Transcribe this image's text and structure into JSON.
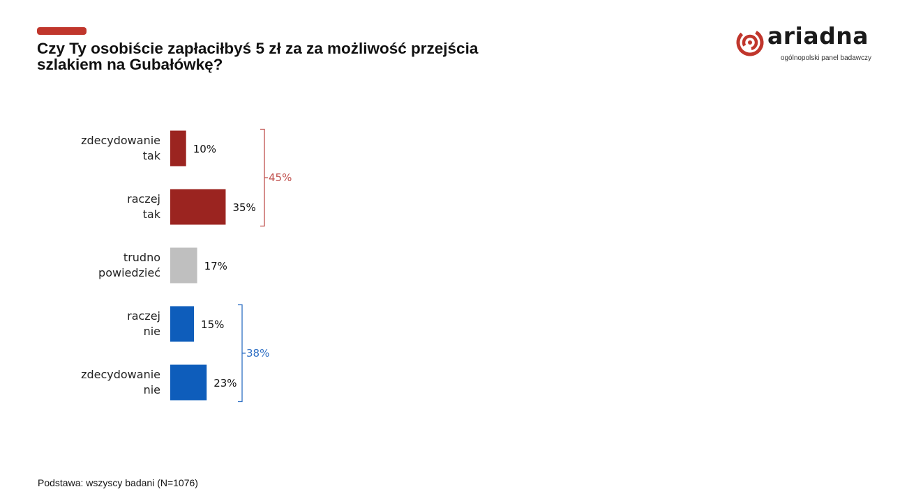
{
  "header": {
    "title_line1": "Czy Ty osobiście zapłaciłbyś 5 zł za za możliwość przejścia",
    "title_line2": "szlakiem na Gubałówkę?"
  },
  "logo": {
    "name": "ariadna",
    "tagline": "ogólnopolski panel badawczy",
    "icon": "ariadna-spiral-icon"
  },
  "footnote": "Podstawa: wszyscy badani (N=1076)",
  "colors": {
    "accent": "#c0362c",
    "red": "#9b2420",
    "gray": "#bfbfbf",
    "blue": "#0e5dbb",
    "red_bracket": "#c0504d",
    "blue_bracket": "#2e6fc4"
  },
  "chart_data": {
    "type": "bar",
    "orientation": "horizontal",
    "categories": [
      [
        "zdecydowanie",
        "tak"
      ],
      [
        "raczej",
        "tak"
      ],
      [
        "trudno",
        "powiedzieć"
      ],
      [
        "raczej",
        "nie"
      ],
      [
        "zdecydowanie",
        "nie"
      ]
    ],
    "values": [
      10,
      35,
      17,
      15,
      23
    ],
    "value_labels": [
      "10%",
      "35%",
      "17%",
      "15%",
      "23%"
    ],
    "bar_colors": [
      "red",
      "red",
      "gray",
      "blue",
      "blue"
    ],
    "unit": "%",
    "groups": [
      {
        "label": "45%",
        "from": 0,
        "to": 1,
        "color": "red_bracket"
      },
      {
        "label": "38%",
        "from": 3,
        "to": 4,
        "color": "blue_bracket"
      }
    ],
    "grid": false,
    "legend": "none"
  }
}
